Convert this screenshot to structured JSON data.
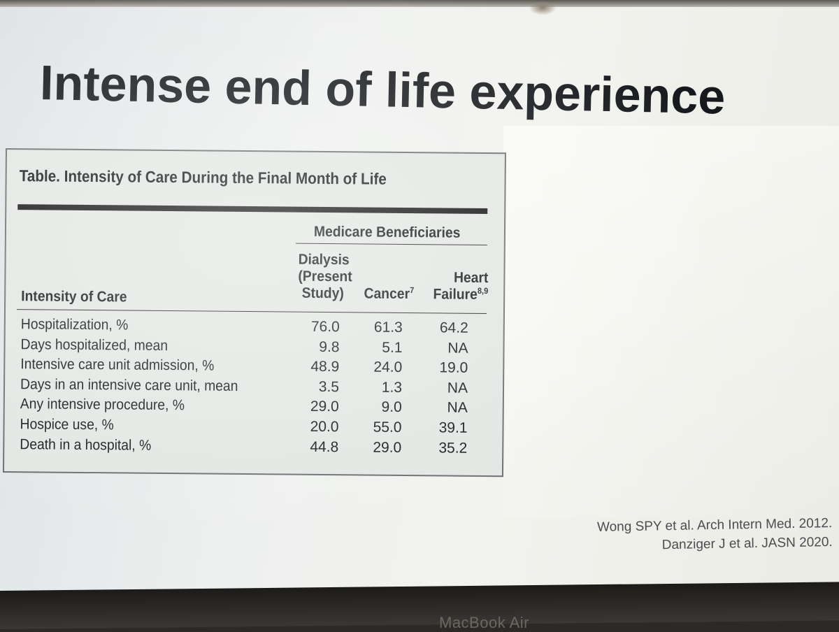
{
  "slide": {
    "title": "Intense end of life experience"
  },
  "table": {
    "caption": "Table. Intensity of Care During the Final Month of Life",
    "group_header": "Medicare Beneficiaries",
    "row_header": "Intensity of Care",
    "columns": [
      {
        "line1": "Dialysis",
        "line2": "(Present",
        "line3": "Study)"
      },
      {
        "label": "Cancer",
        "sup": "7"
      },
      {
        "line1": "Heart",
        "label": "Failure",
        "sup": "8,9"
      }
    ],
    "rows": [
      {
        "label": "Hospitalization, %",
        "values": [
          "76.0",
          "61.3",
          "64.2"
        ]
      },
      {
        "label": "Days hospitalized, mean",
        "values": [
          "9.8",
          "5.1",
          "NA"
        ]
      },
      {
        "label": "Intensive care unit admission, %",
        "values": [
          "48.9",
          "24.0",
          "19.0"
        ]
      },
      {
        "label": "Days in an intensive care unit, mean",
        "values": [
          "3.5",
          "1.3",
          "NA"
        ]
      },
      {
        "label": "Any intensive procedure, %",
        "values": [
          "29.0",
          "9.0",
          "NA"
        ]
      },
      {
        "label": "Hospice use, %",
        "values": [
          "20.0",
          "55.0",
          "39.1"
        ]
      },
      {
        "label": "Death in a hospital, %",
        "values": [
          "44.8",
          "29.0",
          "35.2"
        ]
      }
    ]
  },
  "citations": [
    "Wong SPY et al.  Arch Intern Med. 2012.",
    "Danziger J et al. JASN 2020."
  ],
  "device": {
    "brand": "MacBook Air"
  }
}
